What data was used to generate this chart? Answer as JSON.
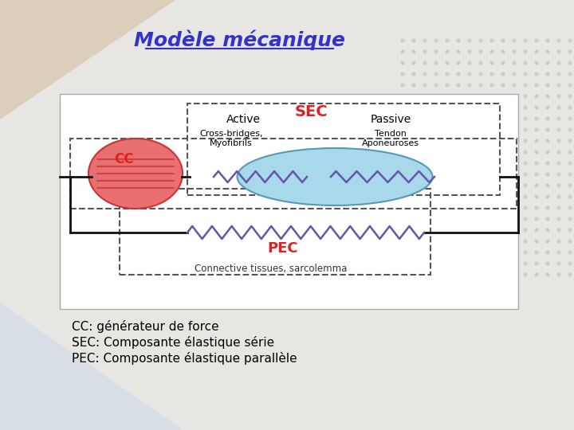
{
  "title": "Modèle mécanique",
  "sec_label": "SEC",
  "pec_label": "PEC",
  "cc_label": "CC",
  "active_label": "Active",
  "passive_label": "Passive",
  "crossbridges_label": "Cross-bridges,",
  "myofibrils_label": "Myofibrils",
  "tendon_label": "Tendon",
  "aponeuroses_label": "Aponeuroses",
  "connective_label": "Connective tissues, sarcolemma",
  "footer1": "CC: générateur de force",
  "footer2": "SEC: Composante élastique série",
  "footer3": "PEC: Composante élastique parallèle",
  "red_color": "#dd2222",
  "title_color": "#3333cc",
  "ellipse_red_face": "#e87070",
  "ellipse_red_edge": "#cc3333",
  "ellipse_blue_face": "#a8d8ea",
  "ellipse_blue_edge": "#5599bb",
  "spring_color": "#6655aa",
  "wire_color": "#111111",
  "dashed_box_color": "#555555",
  "bg_slide": "#e8e6e2",
  "bg_diagram": "#ffffff",
  "bg_tan": "#d4c4a8",
  "bg_blue_corner": "#c8d8e8",
  "dot_color": "#cccccc",
  "text_dark": "#333333",
  "underline_color": "#3333cc"
}
